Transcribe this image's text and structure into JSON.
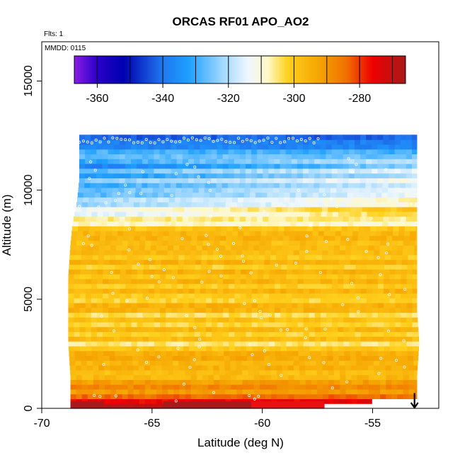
{
  "chart_data": {
    "type": "heatmap",
    "title": "ORCAS RF01 APO_AO2",
    "subtitle_flts": "Flts: 1",
    "subtitle_mmdd": "MMDD: 0115",
    "xlabel": "Latitude (deg N)",
    "ylabel": "Altitude (m)",
    "xlim": [
      -70,
      -52
    ],
    "ylim": [
      0,
      16800
    ],
    "x_ticks": [
      -70,
      -65,
      -60,
      -55
    ],
    "x_tick_labels": [
      "-70",
      "-65",
      "-60",
      "-55"
    ],
    "y_ticks": [
      0,
      5000,
      10000,
      15000
    ],
    "y_tick_labels": [
      "0",
      "5000",
      "10000",
      "15000"
    ],
    "colorbar": {
      "range": [
        -367,
        -266
      ],
      "ticks": [
        -360,
        -340,
        -320,
        -300,
        -280
      ],
      "tick_labels": [
        "-360",
        "-340",
        "-320",
        "-300",
        "-280"
      ],
      "stops": [
        {
          "v": -367,
          "c": "#8a1de6"
        },
        {
          "v": -360,
          "c": "#2a00c8"
        },
        {
          "v": -352,
          "c": "#0000b0"
        },
        {
          "v": -340,
          "c": "#1f78f0"
        },
        {
          "v": -332,
          "c": "#1fa0ff"
        },
        {
          "v": -322,
          "c": "#9ed7ff"
        },
        {
          "v": -314,
          "c": "#eef7ff"
        },
        {
          "v": -308,
          "c": "#fff8c8"
        },
        {
          "v": -302,
          "c": "#ffd21e"
        },
        {
          "v": -292,
          "c": "#f5a300"
        },
        {
          "v": -284,
          "c": "#f07000"
        },
        {
          "v": -276,
          "c": "#ee0000"
        },
        {
          "v": -266,
          "c": "#a81a1a"
        }
      ]
    },
    "field": {
      "lat_range": [
        -68.8,
        -52.9
      ],
      "levels": [
        {
          "alt": 12200,
          "lat_min": -68.3,
          "lat_max": -53.0,
          "value": -338
        },
        {
          "alt": 11500,
          "lat_min": -68.3,
          "lat_max": -53.0,
          "value": -330
        },
        {
          "alt": 10500,
          "lat_min": -68.3,
          "lat_max": -53.0,
          "value": -322
        },
        {
          "alt": 9500,
          "lat_min": -68.4,
          "lat_max": -53.0,
          "value": -314
        },
        {
          "alt": 8500,
          "lat_min": -68.6,
          "lat_max": -53.0,
          "value": -305
        },
        {
          "alt": 7500,
          "lat_min": -68.7,
          "lat_max": -53.0,
          "value": -296
        },
        {
          "alt": 6000,
          "lat_min": -68.8,
          "lat_max": -53.0,
          "value": -297
        },
        {
          "alt": 4500,
          "lat_min": -68.8,
          "lat_max": -53.0,
          "value": -299
        },
        {
          "alt": 3000,
          "lat_min": -68.8,
          "lat_max": -52.9,
          "value": -300
        },
        {
          "alt": 1500,
          "lat_min": -68.7,
          "lat_max": -53.0,
          "value": -296
        },
        {
          "alt": 500,
          "lat_min": -68.7,
          "lat_max": -53.0,
          "value": -284
        },
        {
          "alt": 150,
          "lat_min": -68.7,
          "lat_max": -57.2,
          "value": -270
        }
      ]
    },
    "marker": {
      "type": "arrow-down",
      "lat": -53.1,
      "alt_top": 700,
      "alt_bottom": 0
    }
  }
}
